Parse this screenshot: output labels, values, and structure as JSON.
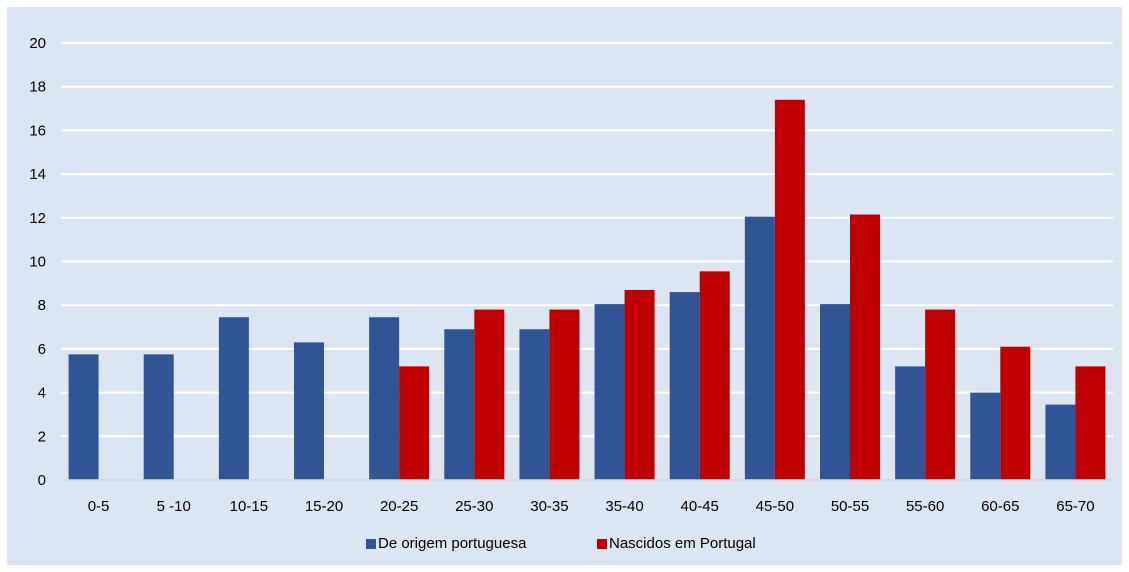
{
  "chart_data": {
    "type": "bar",
    "title": "",
    "xlabel": "",
    "ylabel": "",
    "categories": [
      "0-5",
      "5 -10",
      "10-15",
      "15-20",
      "20-25",
      "25-30",
      "30-35",
      "35-40",
      "40-45",
      "45-50",
      "50-55",
      "55-60",
      "60-65",
      "65-70"
    ],
    "series": [
      {
        "name": "De origem portuguesa",
        "color": "#2f5597",
        "values": [
          5.75,
          5.75,
          7.45,
          6.3,
          7.45,
          6.9,
          6.9,
          8.05,
          8.6,
          12.05,
          8.05,
          5.2,
          4.0,
          3.45
        ]
      },
      {
        "name": "Nascidos em Portugal",
        "color": "#c00000",
        "values": [
          null,
          null,
          null,
          null,
          5.2,
          7.8,
          7.8,
          8.7,
          9.55,
          17.4,
          12.15,
          7.8,
          6.1,
          5.2
        ]
      }
    ],
    "ylim": [
      0,
      20
    ],
    "yticks": [
      0,
      2,
      4,
      6,
      8,
      10,
      12,
      14,
      16,
      18,
      20
    ],
    "grid": true,
    "legend": "bottom-center"
  }
}
